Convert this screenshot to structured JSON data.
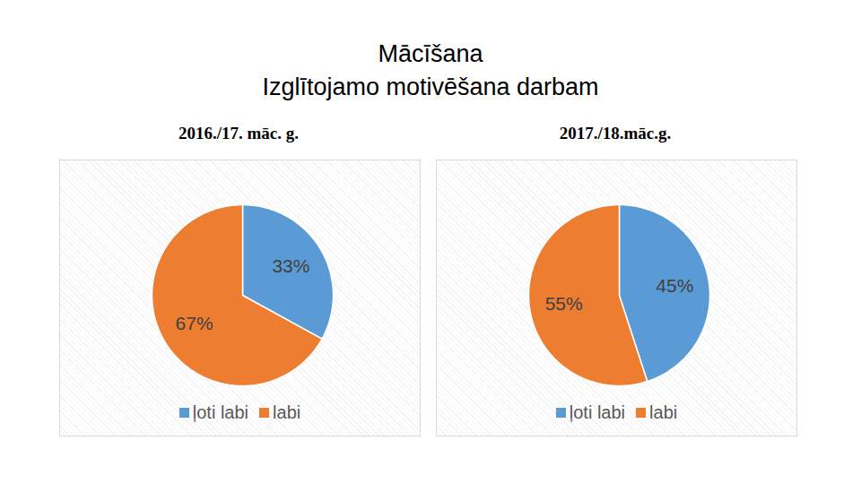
{
  "title": "Mācīšana",
  "subtitle": "Izglītojamo motivēšana darbam",
  "chart_data": [
    {
      "type": "pie",
      "title": "2016./17. māc. g.",
      "categories": [
        "ļoti labi",
        "labi"
      ],
      "values": [
        33,
        67
      ],
      "value_labels": [
        "33%",
        "67%"
      ],
      "colors": [
        "#5b9bd5",
        "#ed7d31"
      ],
      "data_labels": true,
      "legend": "bottom"
    },
    {
      "type": "pie",
      "title": "2017./18.māc.g.",
      "categories": [
        "ļoti labi",
        "labi"
      ],
      "values": [
        45,
        55
      ],
      "value_labels": [
        "45%",
        "55%"
      ],
      "colors": [
        "#5b9bd5",
        "#ed7d31"
      ],
      "data_labels": true,
      "legend": "bottom"
    }
  ]
}
